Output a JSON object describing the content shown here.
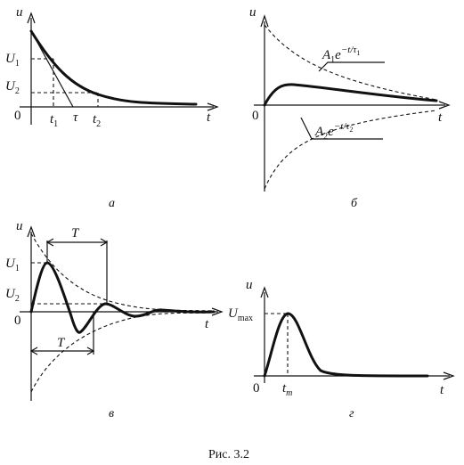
{
  "figure_caption": "Рис. 3.2",
  "panels": {
    "a": {
      "label": "а",
      "axis_y": "u",
      "axis_x": "t",
      "origin": "0",
      "level_1": "U",
      "level_1_sub": "1",
      "level_2": "U",
      "level_2_sub": "2",
      "t1": "t",
      "t1_sub": "1",
      "tau": "τ",
      "t2": "t",
      "t2_sub": "2"
    },
    "b": {
      "label": "б",
      "axis_y": "u",
      "axis_x": "t",
      "origin": "0",
      "term1": {
        "coef": "A",
        "coef_sub": "1",
        "base": "e",
        "exp": "−t/τ",
        "exp_sub": "1"
      },
      "term2": {
        "coef": "A",
        "coef_sub": "2",
        "base": "e",
        "exp": "−t/τ",
        "exp_sub": "2"
      }
    },
    "c": {
      "label": "в",
      "axis_y": "u",
      "axis_x": "t",
      "origin": "0",
      "level_1": "U",
      "level_1_sub": "1",
      "level_2": "U",
      "level_2_sub": "2",
      "period_top": "T",
      "period_bottom": "T"
    },
    "d": {
      "label": "г",
      "axis_y": "u",
      "axis_x": "t",
      "origin": "0",
      "peak": "U",
      "peak_sub": "max",
      "tm": "t",
      "tm_sub": "m"
    }
  }
}
